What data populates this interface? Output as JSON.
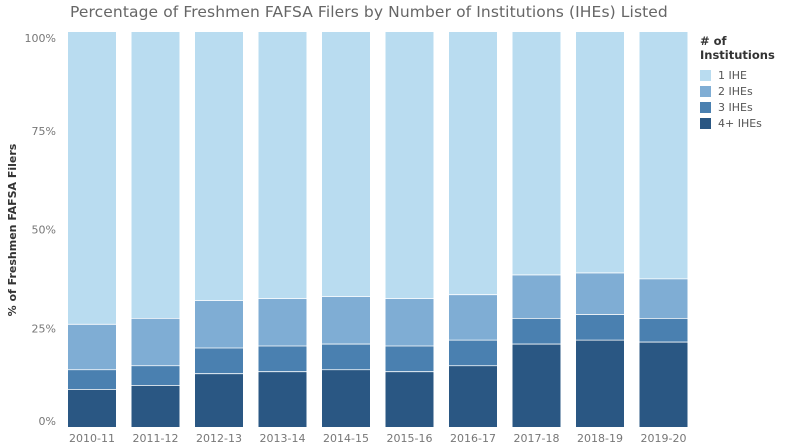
{
  "chart_data": {
    "type": "bar",
    "stacked": true,
    "title": "Percentage of Freshmen FAFSA Filers by Number of Institutions (IHEs) Listed",
    "ylabel": "% of Freshmen FAFSA Filers",
    "xlabel": "",
    "ylim": [
      0,
      100
    ],
    "yticks": [
      "0%",
      "25%",
      "50%",
      "75%",
      "100%"
    ],
    "ytick_values": [
      0,
      25,
      50,
      75,
      100
    ],
    "grid": false,
    "legend_title": "# of Institutions",
    "legend_position": "top-right",
    "categories": [
      "2010-11",
      "2011-12",
      "2012-13",
      "2013-14",
      "2014-15",
      "2015-16",
      "2016-17",
      "2017-18",
      "2018-19",
      "2019-20"
    ],
    "series": [
      {
        "name": "4+ IHEs",
        "color": "#2a5783",
        "values": [
          9.5,
          10.5,
          13.5,
          14,
          14.5,
          14,
          15.5,
          21,
          22,
          21.5
        ]
      },
      {
        "name": "3 IHEs",
        "color": "#4a80b0",
        "values": [
          5,
          5,
          6.5,
          6.5,
          6.5,
          6.5,
          6.5,
          6.5,
          6.5,
          6
        ]
      },
      {
        "name": "2 IHEs",
        "color": "#7fadd4",
        "values": [
          11.5,
          12,
          12,
          12,
          12,
          12,
          11.5,
          11,
          10.5,
          10
        ]
      },
      {
        "name": "1 IHE",
        "color": "#b9dcf0",
        "values": [
          74,
          72.5,
          68,
          67.5,
          67,
          67.5,
          66.5,
          61.5,
          61,
          62.5
        ]
      }
    ]
  }
}
